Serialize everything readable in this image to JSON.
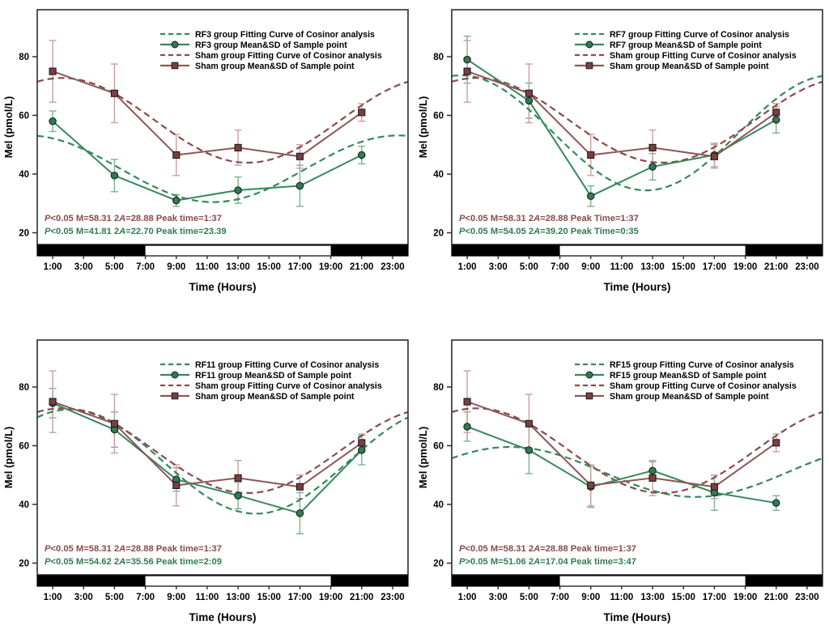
{
  "figure": {
    "background": "#ffffff",
    "colors": {
      "rf": {
        "line": "#36885C",
        "fit": "#35885A",
        "marker": "#2F7C52",
        "error": "#79B394"
      },
      "sham": {
        "line": "#8D5857",
        "fit": "#8A4A4C",
        "marker": "#7B3F41",
        "error": "#C9A0A0"
      },
      "stats_rf": "#2F7C52",
      "stats_sham": "#8A4A4C",
      "axis": "#2D2D2D"
    }
  },
  "chart_data": [
    {
      "type": "line",
      "id": "rf3",
      "group_label": "RF3",
      "ylabel": "Mel (pmol/L)",
      "xlabel": "Time (Hours)",
      "ylim": [
        16,
        96
      ],
      "yticks": [
        20,
        40,
        60,
        80
      ],
      "xlim_hours": [
        0,
        24
      ],
      "xtick_hours": [
        1,
        3,
        5,
        7,
        9,
        11,
        13,
        15,
        17,
        19,
        21,
        23
      ],
      "xtick_labels": [
        "1:00",
        "3:00",
        "5:00",
        "7:00",
        "9:00",
        "11:00",
        "13:00",
        "15:00",
        "17:00",
        "19:00",
        "21:00",
        "23:00"
      ],
      "light_dark_bar": {
        "dark": [
          [
            0,
            7
          ],
          [
            19,
            24
          ]
        ],
        "light": [
          [
            7,
            19
          ]
        ]
      },
      "sample_hours": [
        1,
        5,
        9,
        13,
        17,
        21
      ],
      "series": [
        {
          "name": "RF3 group Fitting Curve of Cosinor analysis",
          "kind": "fit",
          "group": "rf",
          "cosinor": {
            "M": 41.81,
            "amplitude_2A": 22.7,
            "peak_time": "23.39"
          }
        },
        {
          "name": "RF3 group Mean&SD of Sample point",
          "kind": "mean_sd",
          "group": "rf",
          "values": [
            58,
            39.5,
            31,
            34.5,
            36,
            46.5
          ],
          "sd": [
            3.5,
            5.5,
            2,
            4.5,
            7,
            3
          ]
        },
        {
          "name": "Sham group Fitting Curve of Cosinor analysis",
          "kind": "fit",
          "group": "sham",
          "cosinor": {
            "M": 58.31,
            "amplitude_2A": 28.88,
            "peak_time": "1:37"
          }
        },
        {
          "name": "Sham group Mean&SD of Sample point",
          "kind": "mean_sd",
          "group": "sham",
          "values": [
            75,
            67.5,
            46.5,
            49,
            46,
            61
          ],
          "sd": [
            10.5,
            10,
            7,
            6,
            4,
            3
          ]
        }
      ],
      "stats": [
        {
          "group": "sham",
          "text": "P<0.05 M=58.31 2A=28.88 Peak time=1:37"
        },
        {
          "group": "rf",
          "text": "P<0.05 M=41.81 2A=22.70 Peak time=23.39"
        }
      ]
    },
    {
      "type": "line",
      "id": "rf7",
      "group_label": "RF7",
      "ylabel": "Mel (pmol/L)",
      "xlabel": "Time (Hours)",
      "ylim": [
        16,
        96
      ],
      "yticks": [
        20,
        40,
        60,
        80
      ],
      "xlim_hours": [
        0,
        24
      ],
      "xtick_hours": [
        1,
        3,
        5,
        7,
        9,
        11,
        13,
        15,
        17,
        19,
        21,
        23
      ],
      "xtick_labels": [
        "1:00",
        "3:00",
        "5:00",
        "7:00",
        "9:00",
        "11:00",
        "13:00",
        "15:00",
        "17:00",
        "19:00",
        "21:00",
        "23:00"
      ],
      "light_dark_bar": {
        "dark": [
          [
            0,
            7
          ],
          [
            19,
            24
          ]
        ],
        "light": [
          [
            7,
            19
          ]
        ]
      },
      "sample_hours": [
        1,
        5,
        9,
        13,
        17,
        21
      ],
      "series": [
        {
          "name": "RF7 group Fitting Curve of Cosinor analysis",
          "kind": "fit",
          "group": "rf",
          "cosinor": {
            "M": 54.05,
            "amplitude_2A": 39.2,
            "peak_time": "0:35"
          }
        },
        {
          "name": "RF7 group Mean&SD of Sample point",
          "kind": "mean_sd",
          "group": "rf",
          "values": [
            79,
            65,
            32.5,
            42.5,
            46.5,
            58.5
          ],
          "sd": [
            8,
            6,
            3.5,
            4.5,
            4,
            4.5
          ]
        },
        {
          "name": "Sham group Fitting Curve of Cosinor analysis",
          "kind": "fit",
          "group": "sham",
          "cosinor": {
            "M": 58.31,
            "amplitude_2A": 28.88,
            "peak_time": "1:37"
          }
        },
        {
          "name": "Sham group Mean&SD of Sample point",
          "kind": "mean_sd",
          "group": "sham",
          "values": [
            75,
            67.5,
            46.5,
            49,
            46,
            61
          ],
          "sd": [
            10.5,
            10,
            7,
            6,
            4,
            3
          ]
        }
      ],
      "stats": [
        {
          "group": "sham",
          "text": "P<0.05 M=58.31 2A=28.88 Peak Time=1:37"
        },
        {
          "group": "rf",
          "text": "P<0.05 M=54.05 2A=39.20 Peak Time=0:35"
        }
      ]
    },
    {
      "type": "line",
      "id": "rf11",
      "group_label": "RF11",
      "ylabel": "Mel (pmol/L)",
      "xlabel": "Time (Hours)",
      "ylim": [
        16,
        96
      ],
      "yticks": [
        20,
        40,
        60,
        80
      ],
      "xlim_hours": [
        0,
        24
      ],
      "xtick_hours": [
        1,
        3,
        5,
        7,
        9,
        11,
        13,
        15,
        17,
        19,
        21,
        23
      ],
      "xtick_labels": [
        "1:00",
        "3:00",
        "5:00",
        "7:00",
        "9:00",
        "11:00",
        "13:00",
        "15:00",
        "17:00",
        "19:00",
        "21:00",
        "23:00"
      ],
      "light_dark_bar": {
        "dark": [
          [
            0,
            7
          ],
          [
            19,
            24
          ]
        ],
        "light": [
          [
            7,
            19
          ]
        ]
      },
      "sample_hours": [
        1,
        5,
        9,
        13,
        17,
        21
      ],
      "series": [
        {
          "name": "RF11 group Fitting Curve of Cosinor analysis",
          "kind": "fit",
          "group": "rf",
          "cosinor": {
            "M": 54.62,
            "amplitude_2A": 35.56,
            "peak_time": "2:09"
          }
        },
        {
          "name": "RF11 group Mean&SD of Sample point",
          "kind": "mean_sd",
          "group": "rf",
          "values": [
            74.5,
            65.5,
            48.5,
            43,
            37,
            58.5
          ],
          "sd": [
            5,
            6,
            4,
            4.5,
            7,
            5
          ]
        },
        {
          "name": "Sham group Fitting Curve of Cosinor analysis",
          "kind": "fit",
          "group": "sham",
          "cosinor": {
            "M": 58.31,
            "amplitude_2A": 28.88,
            "peak_time": "1:37"
          }
        },
        {
          "name": "Sham group Mean&SD of Sample point",
          "kind": "mean_sd",
          "group": "sham",
          "values": [
            75,
            67.5,
            46.5,
            49,
            46,
            61
          ],
          "sd": [
            10.5,
            10,
            7,
            6,
            4,
            3
          ]
        }
      ],
      "stats": [
        {
          "group": "sham",
          "text": "P<0.05 M=58.31 2A=28.88 Peak time=1:37"
        },
        {
          "group": "rf",
          "text": "P<0.05 M=54.62 2A=35.56 Peak time=2:09"
        }
      ]
    },
    {
      "type": "line",
      "id": "rf15",
      "group_label": "RF15",
      "ylabel": "Mel (pmol/L)",
      "xlabel": "Time (Hours)",
      "ylim": [
        16,
        96
      ],
      "yticks": [
        20,
        40,
        60,
        80
      ],
      "xlim_hours": [
        0,
        24
      ],
      "xtick_hours": [
        1,
        3,
        5,
        7,
        9,
        11,
        13,
        15,
        17,
        19,
        21,
        23
      ],
      "xtick_labels": [
        "1:00",
        "3:00",
        "5:00",
        "7:00",
        "9:00",
        "11:00",
        "13:00",
        "15:00",
        "17:00",
        "19:00",
        "21:00",
        "23:00"
      ],
      "light_dark_bar": {
        "dark": [
          [
            0,
            7
          ],
          [
            19,
            24
          ]
        ],
        "light": [
          [
            7,
            19
          ]
        ]
      },
      "sample_hours": [
        1,
        5,
        9,
        13,
        17,
        21
      ],
      "series": [
        {
          "name": "RF15 group Fitting Curve of Cosinor analysis",
          "kind": "fit",
          "group": "rf",
          "cosinor": {
            "M": 51.06,
            "amplitude_2A": 17.04,
            "peak_time": "3:47"
          }
        },
        {
          "name": "RF15 group Mean&SD of Sample point",
          "kind": "mean_sd",
          "group": "rf",
          "values": [
            66.5,
            58.5,
            46,
            51.5,
            44,
            40.5
          ],
          "sd": [
            5,
            8,
            7,
            3,
            6,
            2.5
          ]
        },
        {
          "name": "Sham group Fitting Curve of Cosinor analysis",
          "kind": "fit",
          "group": "sham",
          "cosinor": {
            "M": 58.31,
            "amplitude_2A": 28.88,
            "peak_time": "1:37"
          }
        },
        {
          "name": "Sham group Mean&SD of Sample point",
          "kind": "mean_sd",
          "group": "sham",
          "values": [
            75,
            67.5,
            46.5,
            49,
            46,
            61
          ],
          "sd": [
            10.5,
            10,
            7,
            6,
            4,
            3
          ]
        }
      ],
      "stats": [
        {
          "group": "sham",
          "text": "P<0.05 M=58.31 2A=28.88 Peak time=1:37"
        },
        {
          "group": "rf",
          "text": "P>0.05 M=51.06 2A=17.04 Peak time=3:47"
        }
      ]
    }
  ]
}
